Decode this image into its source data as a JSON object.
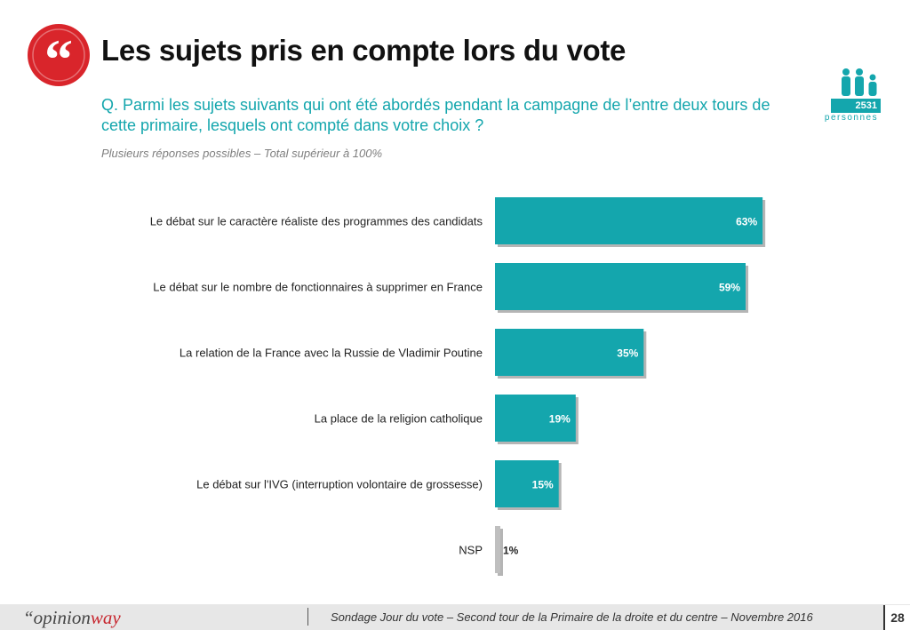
{
  "header": {
    "title": "Les sujets pris en compte lors du vote",
    "question": "Q. Parmi les sujets suivants qui ont été abordés pendant la campagne de l’entre deux tours de cette primaire, lesquels ont compté dans votre choix ?",
    "note": "Plusieurs réponses possibles – Total supérieur à 100%",
    "quote_glyph": "“"
  },
  "sample": {
    "count": "2531",
    "label": "personnes",
    "icon": "people-icon"
  },
  "colors": {
    "accent": "#14a6ad",
    "brand_red": "#d9252b",
    "nsp_bar": "#bfbfbf"
  },
  "chart_data": {
    "type": "bar",
    "orientation": "horizontal",
    "categories": [
      "Le débat sur le caractère réaliste des programmes des candidats",
      "Le débat sur le nombre de fonctionnaires à supprimer en France",
      "La relation de la France avec la Russie de Vladimir Poutine",
      "La place de la religion catholique",
      "Le débat sur l'IVG (interruption volontaire de grossesse)",
      "NSP"
    ],
    "values": [
      63,
      59,
      35,
      19,
      15,
      1
    ],
    "data_labels": [
      "63%",
      "59%",
      "35%",
      "19%",
      "15%",
      "1%"
    ],
    "xlim": [
      0,
      100
    ],
    "grid": false,
    "legend": "none"
  },
  "footer": {
    "logo_prefix": "“opinion",
    "logo_accent": "way",
    "source": "Sondage Jour du vote – Second tour de la Primaire de la droite et du centre – Novembre 2016",
    "page_number": "28"
  }
}
